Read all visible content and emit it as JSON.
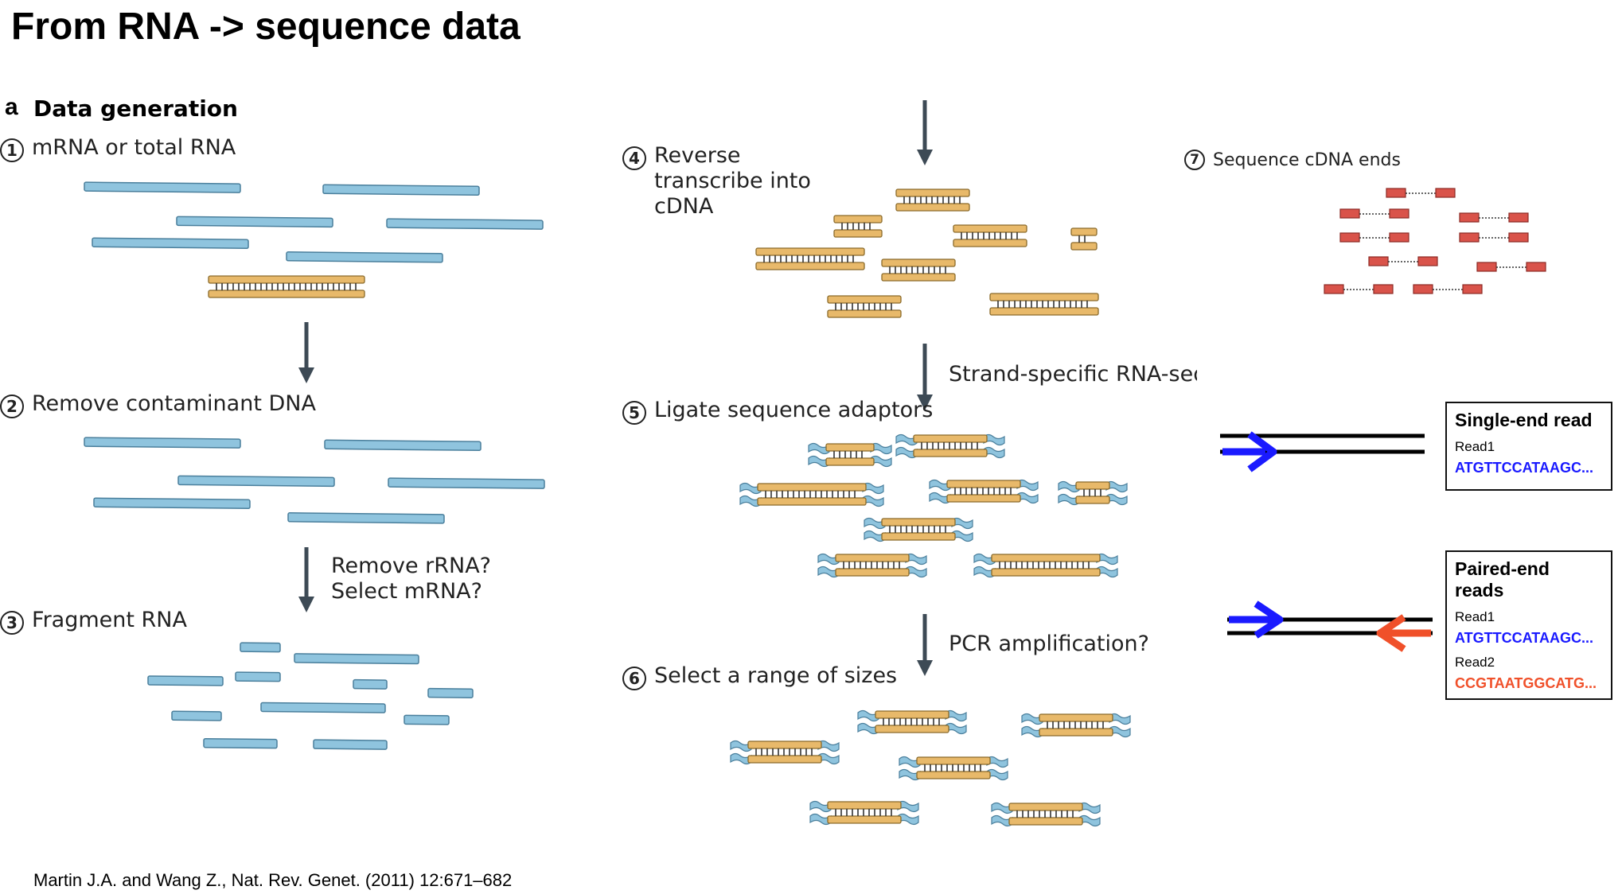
{
  "title": "From RNA -> sequence data",
  "panel": {
    "letter": "a",
    "heading": "Data generation"
  },
  "steps": [
    {
      "num": "1",
      "label": "mRNA or total RNA"
    },
    {
      "num": "2",
      "label": "Remove contaminant DNA"
    },
    {
      "num": "3",
      "label": "Fragment RNA"
    },
    {
      "num": "4",
      "label": "Reverse transcribe into cDNA"
    },
    {
      "num": "5",
      "label": "Ligate sequence adaptors"
    },
    {
      "num": "6",
      "label": "Select a range of sizes"
    },
    {
      "num": "7",
      "label": "Sequence cDNA ends"
    }
  ],
  "arrow_labels": {
    "remove_rrna": "Remove rRNA?",
    "select_mrna": "Select mRNA?",
    "strand_specific": "Strand-specific RNA-seq?",
    "pcr": "PCR amplification?"
  },
  "single_end": {
    "header": "Single-end read",
    "read1_label": "Read1",
    "read1_seq": "ATGTTCCATAAGC..."
  },
  "paired_end": {
    "header": "Paired-end reads",
    "read1_label": "Read1",
    "read1_seq": "ATGTTCCATAAGC...",
    "read2_label": "Read2",
    "read2_seq": "CCGTAATGGCATG..."
  },
  "colors": {
    "rna": "#8fc4de",
    "dna": "#e8b96a",
    "adaptor": "#8fc4de",
    "read_block": "#d9534a",
    "arrow": "#3d4a55",
    "read1": "#1a1aff",
    "read2": "#f0502a"
  },
  "citation": "Martin J.A. and Wang Z., Nat. Rev. Genet. (2011) 12:671–682"
}
